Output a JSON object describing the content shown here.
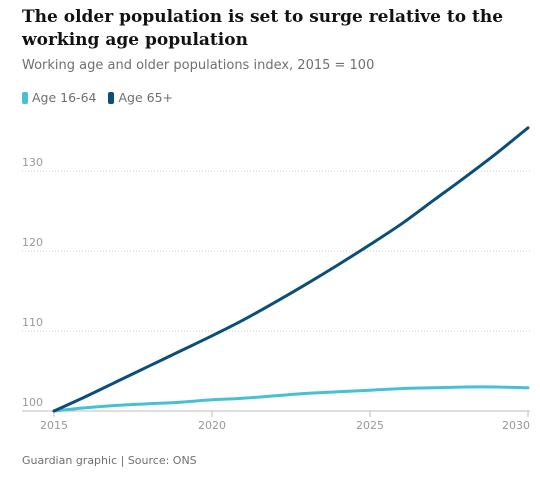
{
  "title": "The older population is set to surge relative to the working age population",
  "subtitle": "Working age and older populations index, 2015 = 100",
  "source": "Guardian graphic | Source: ONS",
  "chart_data": {
    "type": "line",
    "x": [
      2015,
      2016,
      2017,
      2018,
      2019,
      2020,
      2021,
      2022,
      2023,
      2024,
      2025,
      2026,
      2027,
      2028,
      2029,
      2030
    ],
    "series": [
      {
        "name": "Age 16-64",
        "color": "#48c0d4",
        "values": [
          100,
          100.4,
          100.7,
          100.9,
          101.1,
          101.4,
          101.6,
          101.9,
          102.2,
          102.4,
          102.6,
          102.8,
          102.9,
          103.0,
          103.0,
          102.9
        ]
      },
      {
        "name": "Age 65+",
        "color": "#0a4f7a",
        "values": [
          100,
          101.8,
          103.7,
          105.6,
          107.5,
          109.4,
          111.4,
          113.6,
          115.9,
          118.3,
          120.8,
          123.4,
          126.3,
          129.2,
          132.2,
          135.4
        ]
      }
    ],
    "xticks": [
      "2015",
      "2020",
      "2025",
      "2030"
    ],
    "yticks": [
      "100",
      "110",
      "120",
      "130"
    ],
    "xlim": [
      2015,
      2030
    ],
    "ylim": [
      100,
      138
    ],
    "grid": "horizontal-dotted",
    "legend_position": "top-left"
  }
}
